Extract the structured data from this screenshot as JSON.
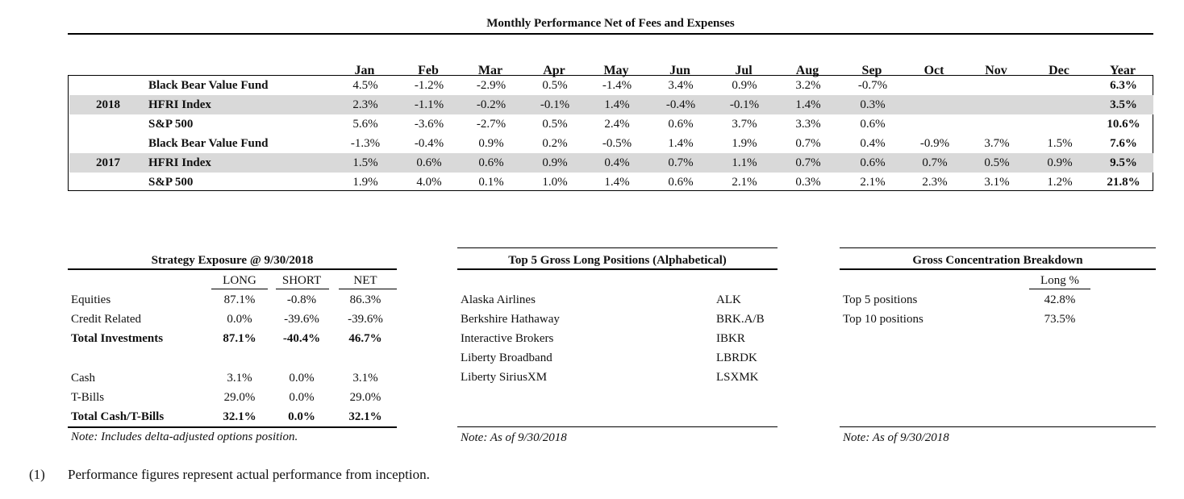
{
  "performance": {
    "title": "Monthly Performance Net of Fees and Expenses",
    "columns": [
      "Jan",
      "Feb",
      "Mar",
      "Apr",
      "May",
      "Jun",
      "Jul",
      "Aug",
      "Sep",
      "Oct",
      "Nov",
      "Dec",
      "Year"
    ],
    "years": [
      {
        "year": "2018",
        "rows": [
          {
            "name": "Black Bear Value Fund",
            "values": [
              "4.5%",
              "-1.2%",
              "-2.9%",
              "0.5%",
              "-1.4%",
              "3.4%",
              "0.9%",
              "3.2%",
              "-0.7%",
              "",
              "",
              "",
              "6.3%"
            ]
          },
          {
            "name": "HFRI Index",
            "values": [
              "2.3%",
              "-1.1%",
              "-0.2%",
              "-0.1%",
              "1.4%",
              "-0.4%",
              "-0.1%",
              "1.4%",
              "0.3%",
              "",
              "",
              "",
              "3.5%"
            ]
          },
          {
            "name": "S&P 500",
            "values": [
              "5.6%",
              "-3.6%",
              "-2.7%",
              "0.5%",
              "2.4%",
              "0.6%",
              "3.7%",
              "3.3%",
              "0.6%",
              "",
              "",
              "",
              "10.6%"
            ]
          }
        ]
      },
      {
        "year": "2017",
        "rows": [
          {
            "name": "Black Bear Value Fund",
            "values": [
              "-1.3%",
              "-0.4%",
              "0.9%",
              "0.2%",
              "-0.5%",
              "1.4%",
              "1.9%",
              "0.7%",
              "0.4%",
              "-0.9%",
              "3.7%",
              "1.5%",
              "7.6%"
            ]
          },
          {
            "name": "HFRI Index",
            "values": [
              "1.5%",
              "0.6%",
              "0.6%",
              "0.9%",
              "0.4%",
              "0.7%",
              "1.1%",
              "0.7%",
              "0.6%",
              "0.7%",
              "0.5%",
              "0.9%",
              "9.5%"
            ]
          },
          {
            "name": "S&P 500",
            "values": [
              "1.9%",
              "4.0%",
              "0.1%",
              "1.0%",
              "1.4%",
              "0.6%",
              "2.1%",
              "0.3%",
              "2.1%",
              "2.3%",
              "3.1%",
              "1.2%",
              "21.8%"
            ]
          }
        ]
      }
    ]
  },
  "strategy": {
    "title": "Strategy Exposure @ 9/30/2018",
    "headers": [
      "LONG",
      "SHORT",
      "NET"
    ],
    "rows": [
      {
        "label": "Equities",
        "values": [
          "87.1%",
          "-0.8%",
          "86.3%"
        ],
        "bold": false
      },
      {
        "label": "Credit Related",
        "values": [
          "0.0%",
          "-39.6%",
          "-39.6%"
        ],
        "bold": false
      },
      {
        "label": "Total Investments",
        "values": [
          "87.1%",
          "-40.4%",
          "46.7%"
        ],
        "bold": true
      },
      {
        "label": "Cash",
        "values": [
          "3.1%",
          "0.0%",
          "3.1%"
        ],
        "bold": false
      },
      {
        "label": "T-Bills",
        "values": [
          "29.0%",
          "0.0%",
          "29.0%"
        ],
        "bold": false
      },
      {
        "label": "Total Cash/T-Bills",
        "values": [
          "32.1%",
          "0.0%",
          "32.1%"
        ],
        "bold": true
      }
    ],
    "note": "Note: Includes delta-adjusted options position."
  },
  "top5": {
    "title": "Top 5 Gross Long Positions (Alphabetical)",
    "rows": [
      {
        "name": "Alaska Airlines",
        "ticker": "ALK"
      },
      {
        "name": "Berkshire Hathaway",
        "ticker": "BRK.A/B"
      },
      {
        "name": "Interactive Brokers",
        "ticker": "IBKR"
      },
      {
        "name": "Liberty Broadband",
        "ticker": "LBRDK"
      },
      {
        "name": "Liberty SiriusXM",
        "ticker": "LSXMK"
      }
    ],
    "note": "Note: As of 9/30/2018"
  },
  "concentration": {
    "title": "Gross Concentration Breakdown",
    "header": "Long %",
    "rows": [
      {
        "label": "Top 5 positions",
        "value": "42.8%"
      },
      {
        "label": "Top 10 positions",
        "value": "73.5%"
      }
    ],
    "note": "Note: As of 9/30/2018"
  },
  "footnote": {
    "marker": "(1)",
    "text": "Performance figures represent actual performance from inception."
  }
}
